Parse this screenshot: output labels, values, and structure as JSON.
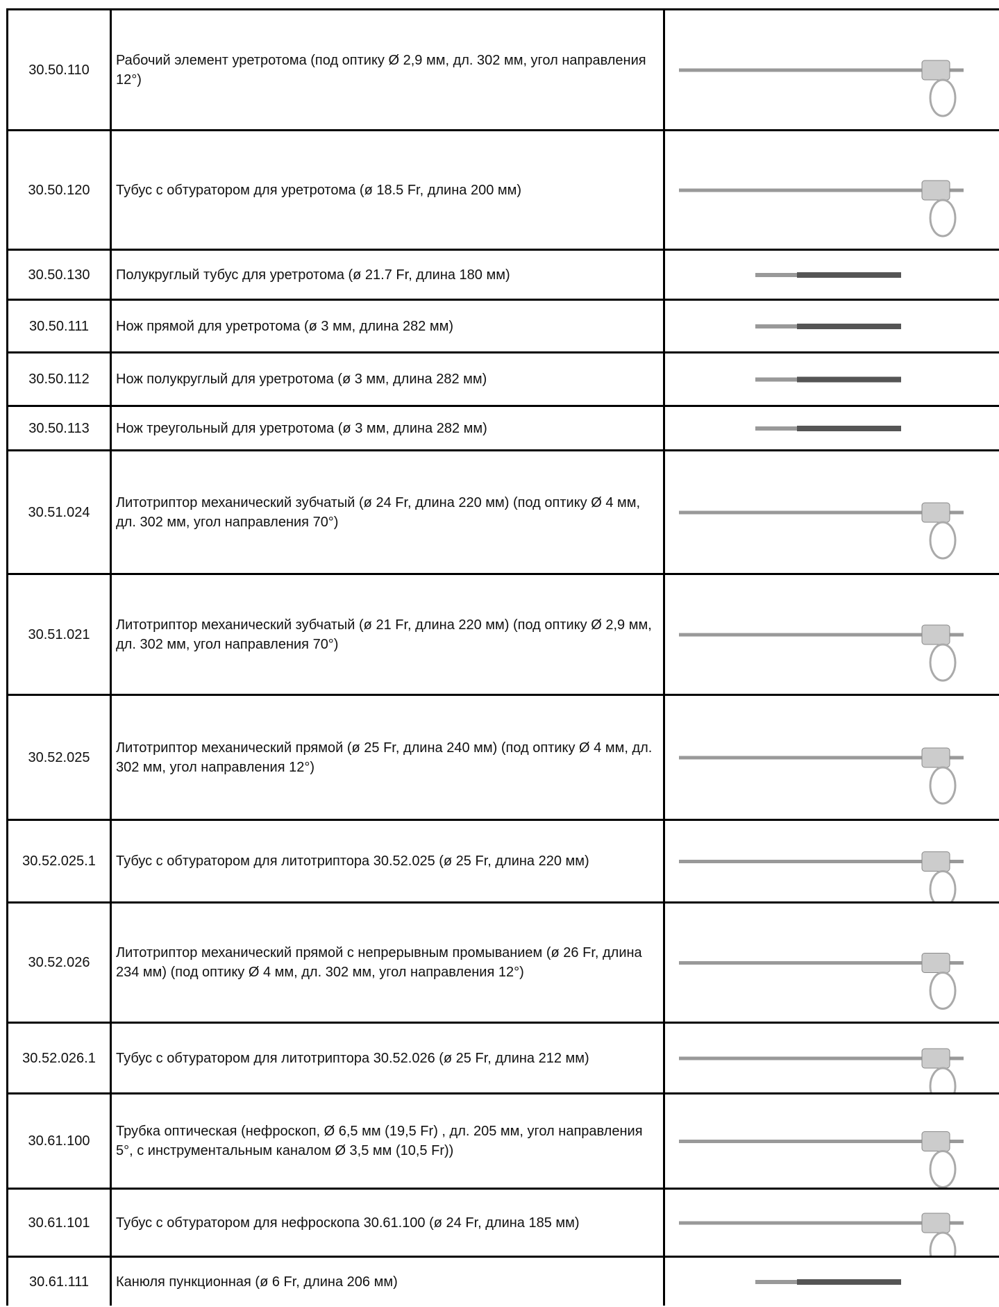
{
  "table": {
    "rows": [
      [
        "30.50.110",
        "Рабочий элемент уретротома (под оптику Ø 2,9 мм, дл. 302 мм, угол направления 12°)"
      ],
      [
        "30.50.120",
        "Тубус с обтуратором для уретротома (ø 18.5 Fr, длина 200 мм)"
      ],
      [
        "30.50.130",
        "Полукруглый тубус для уретротома (ø 21.7 Fr, длина 180 мм)"
      ],
      [
        "30.50.111",
        "Нож прямой для уретротома (ø 3 мм, длина 282 мм)"
      ],
      [
        "30.50.112",
        "Нож полукруглый для уретротома (ø 3 мм, длина 282 мм)"
      ],
      [
        "30.50.113",
        "Нож треугольный для уретротома (ø 3 мм, длина 282 мм)"
      ],
      [
        "30.51.024",
        "Литотриптор механический зубчатый (ø 24 Fr, длина 220 мм) (под оптику Ø 4 мм, дл. 302 мм, угол направления 70°)"
      ],
      [
        "30.51.021",
        "Литотриптор механический зубчатый (ø 21 Fr, длина 220 мм) (под оптику Ø 2,9 мм, дл. 302 мм, угол направления 70°)"
      ],
      [
        "30.52.025",
        "Литотриптор механический прямой (ø 25 Fr, длина 240 мм) (под оптику Ø 4 мм, дл. 302 мм, угол направления 12°)"
      ],
      [
        "30.52.025.1",
        "Тубус с обтуратором для литотриптора 30.52.025 (ø 25 Fr, длина 220 мм)"
      ],
      [
        "30.52.026",
        "Литотриптор механический прямой с непрерывным промыванием (ø 26 Fr, длина 234 мм) (под оптику Ø 4 мм, дл. 302 мм, угол направления 12°)"
      ],
      [
        "30.52.026.1",
        "Тубус с обтуратором для литотриптора 30.52.026 (ø 25 Fr, длина 212 мм)"
      ],
      [
        "30.61.100",
        "Трубка оптическая (нефроскоп, Ø 6,5 мм (19,5 Fr) , дл. 205 мм, угол направления 5°, с инструментальным каналом Ø 3,5 мм (10,5 Fr))"
      ],
      [
        "30.61.101",
        "Тубус с обтуратором для нефроскопа 30.61.100 (ø 24 Fr, длина 185 мм)"
      ],
      [
        "30.61.111",
        "Канюля пункционная (ø 6 Fr, длина 206 мм)"
      ]
    ]
  }
}
